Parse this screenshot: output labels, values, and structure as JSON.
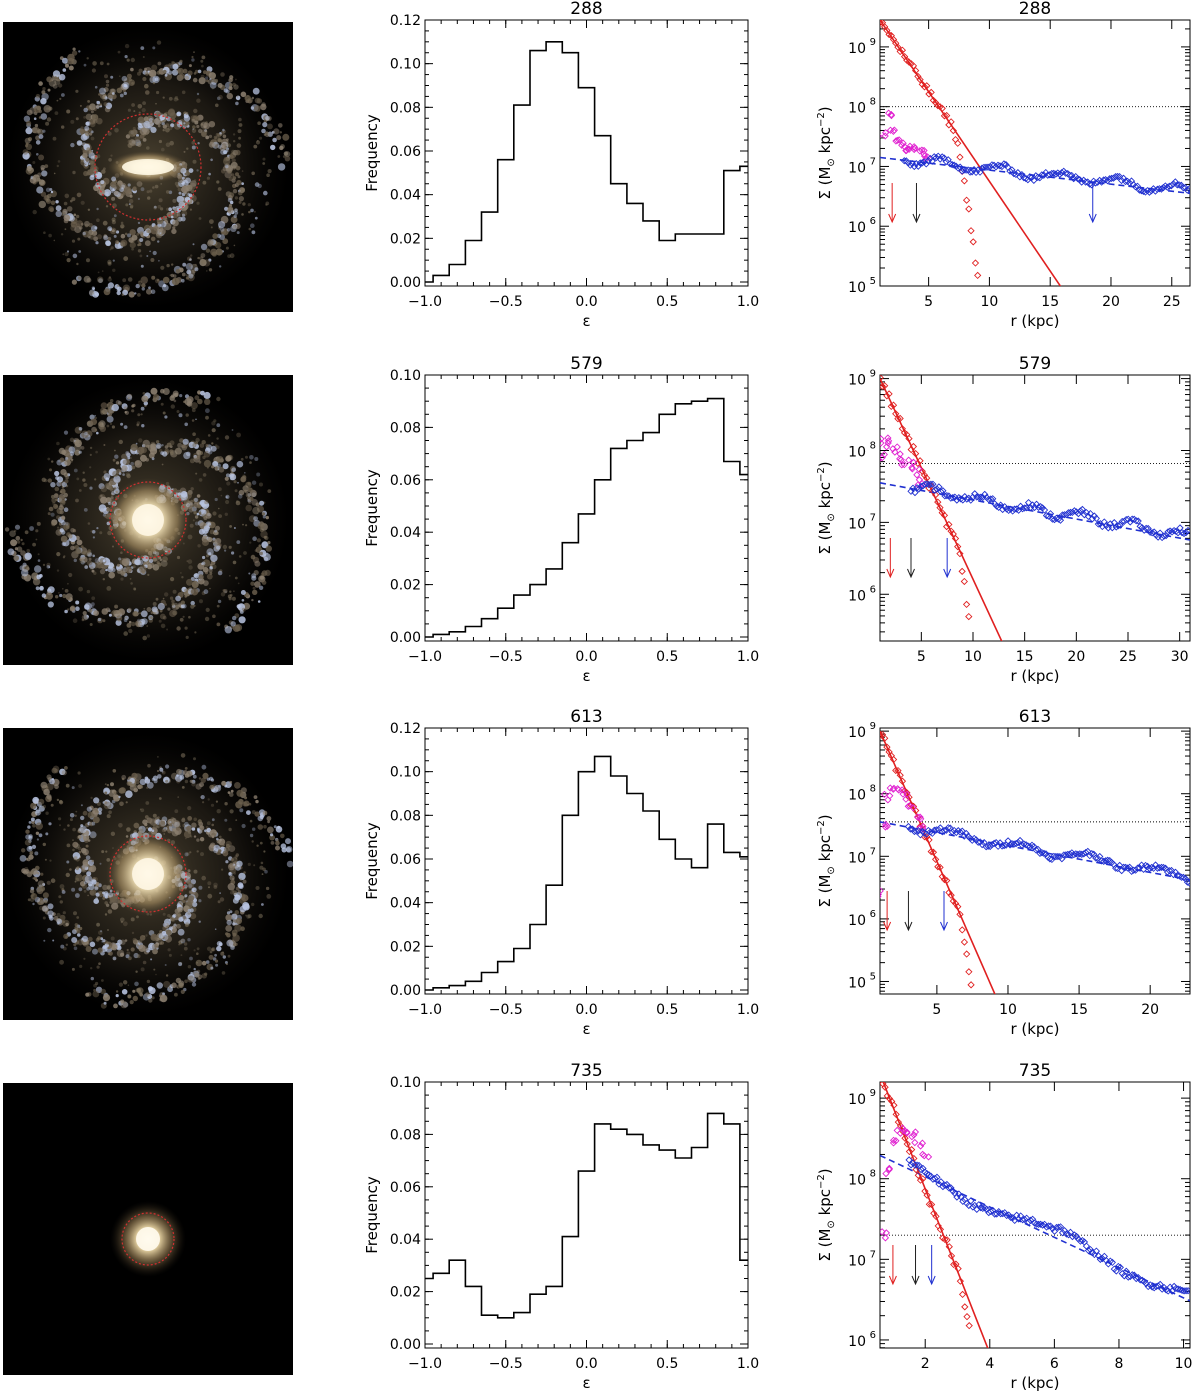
{
  "figure": {
    "panels": [
      {
        "id": "288",
        "galaxy_image": {
          "type": "barred-spiral",
          "bulge_circle_color": "#d03030",
          "spiral_arms": true
        },
        "hist": {
          "title": "288",
          "xlabel": "ε",
          "ylabel": "Frequency",
          "xlim": [
            -1.0,
            1.0
          ],
          "ylim": [
            0,
            0.12
          ],
          "yticks": [
            0.0,
            0.02,
            0.04,
            0.06,
            0.08,
            0.1,
            0.12
          ],
          "ytick_labels": [
            "0.00",
            "0.02",
            "0.04",
            "0.06",
            "0.08",
            "0.10",
            "0.12"
          ],
          "xticks": [
            -1.0,
            -0.5,
            0.0,
            0.5,
            1.0
          ],
          "xtick_labels": [
            "−1.0",
            "−0.5",
            "0.0",
            "0.5",
            "1.0"
          ],
          "bin_width": 0.1,
          "values": [
            0.0,
            0.003,
            0.008,
            0.019,
            0.032,
            0.056,
            0.081,
            0.106,
            0.11,
            0.105,
            0.089,
            0.067,
            0.045,
            0.036,
            0.028,
            0.019,
            0.022,
            0.022,
            0.022,
            0.051,
            0.053
          ]
        },
        "profile": {
          "title": "288",
          "xlabel": "r (kpc)",
          "ylabel": "Σ (M",
          "ylabel_sub": "⊙",
          "ylabel_rest": " kpc",
          "ylabel_sup": "−2",
          "ylabel_close": ")",
          "xlim": [
            1,
            26.5
          ],
          "ylog": [
            5,
            9.45
          ],
          "xticks": [
            5,
            10,
            15,
            20,
            25
          ],
          "xtick_labels": [
            "5",
            "10",
            "15",
            "20",
            "25"
          ],
          "yticks": [
            5,
            6,
            7,
            8,
            9
          ],
          "ytick_labels": [
            "10",
            "10",
            "10",
            "10",
            "10"
          ],
          "ytick_exps": [
            "5",
            "6",
            "7",
            "8",
            "9"
          ],
          "hline": 8.0,
          "bulge_fit": {
            "log_sigma0": 9.45,
            "r0": 1.0,
            "slope": -0.3
          },
          "disk_fit": {
            "log_sigma0": 7.15,
            "r0": 1.0,
            "slope": -0.0235
          },
          "arrows": [
            {
              "color": "#e02020",
              "x": 2.0
            },
            {
              "color": "#202020",
              "x": 4.0
            },
            {
              "color": "#2030d0",
              "x": 18.5
            }
          ],
          "bulge_points": {
            "r_max": 12.0,
            "cut_r": 7.0,
            "steep": 0.7
          },
          "magenta_points": [
            [
              1.2,
              7.55
            ],
            [
              1.6,
              7.85
            ],
            [
              2.0,
              7.6
            ],
            [
              2.4,
              7.45
            ],
            [
              2.8,
              7.35
            ],
            [
              3.2,
              7.3
            ],
            [
              3.6,
              7.28
            ],
            [
              4.0,
              7.3
            ],
            [
              4.4,
              7.25
            ],
            [
              4.8,
              7.15
            ]
          ],
          "disk_points": {
            "r_min": 3.0,
            "r_max": 26.5,
            "wiggle": 0.08
          }
        }
      },
      {
        "id": "579",
        "galaxy_image": {
          "type": "spiral",
          "bulge_circle_color": "#d03030",
          "spiral_arms": true
        },
        "hist": {
          "title": "579",
          "xlabel": "ε",
          "ylabel": "Frequency",
          "xlim": [
            -1.0,
            1.0
          ],
          "ylim": [
            0,
            0.1
          ],
          "yticks": [
            0.0,
            0.02,
            0.04,
            0.06,
            0.08,
            0.1
          ],
          "ytick_labels": [
            "0.00",
            "0.02",
            "0.04",
            "0.06",
            "0.08",
            "0.10"
          ],
          "xticks": [
            -1.0,
            -0.5,
            0.0,
            0.5,
            1.0
          ],
          "xtick_labels": [
            "−1.0",
            "−0.5",
            "0.0",
            "0.5",
            "1.0"
          ],
          "bin_width": 0.1,
          "values": [
            0.0,
            0.001,
            0.002,
            0.004,
            0.007,
            0.011,
            0.016,
            0.02,
            0.026,
            0.036,
            0.047,
            0.06,
            0.072,
            0.075,
            0.078,
            0.085,
            0.089,
            0.09,
            0.091,
            0.067,
            0.062
          ]
        },
        "profile": {
          "title": "579",
          "xlabel": "r (kpc)",
          "ylabel": "Σ (M",
          "ylabel_sub": "⊙",
          "ylabel_rest": " kpc",
          "ylabel_sup": "−2",
          "ylabel_close": ")",
          "xlim": [
            1,
            31
          ],
          "ylog": [
            5.35,
            9.05
          ],
          "xticks": [
            5,
            10,
            15,
            20,
            25,
            30
          ],
          "xtick_labels": [
            "5",
            "10",
            "15",
            "20",
            "25",
            "30"
          ],
          "yticks": [
            6,
            7,
            8,
            9
          ],
          "ytick_labels": [
            "10",
            "10",
            "10",
            "10"
          ],
          "ytick_exps": [
            "6",
            "7",
            "8",
            "9"
          ],
          "hline": 7.82,
          "bulge_fit": {
            "log_sigma0": 9.0,
            "r0": 1.0,
            "slope": -0.31
          },
          "disk_fit": {
            "log_sigma0": 7.55,
            "r0": 1.0,
            "slope": -0.0265
          },
          "arrows": [
            {
              "color": "#e02020",
              "x": 2.0
            },
            {
              "color": "#202020",
              "x": 4.0
            },
            {
              "color": "#2030d0",
              "x": 7.5
            }
          ],
          "bulge_points": {
            "r_max": 13.2,
            "cut_r": 8.5,
            "steep": 0.6
          },
          "magenta_points": [
            [
              1.0,
              7.9
            ],
            [
              1.5,
              8.15
            ],
            [
              2.0,
              8.1
            ],
            [
              2.5,
              8.0
            ],
            [
              3.0,
              7.92
            ],
            [
              3.5,
              7.85
            ],
            [
              4.0,
              7.8
            ],
            [
              4.5,
              7.7
            ],
            [
              5.0,
              7.55
            ]
          ],
          "disk_points": {
            "r_min": 4.0,
            "r_max": 31,
            "wiggle": 0.06
          }
        }
      },
      {
        "id": "613",
        "galaxy_image": {
          "type": "spiral",
          "bulge_circle_color": "#d03030",
          "spiral_arms": true
        },
        "hist": {
          "title": "613",
          "xlabel": "ε",
          "ylabel": "Frequency",
          "xlim": [
            -1.0,
            1.0
          ],
          "ylim": [
            0,
            0.12
          ],
          "yticks": [
            0.0,
            0.02,
            0.04,
            0.06,
            0.08,
            0.1,
            0.12
          ],
          "ytick_labels": [
            "0.00",
            "0.02",
            "0.04",
            "0.06",
            "0.08",
            "0.10",
            "0.12"
          ],
          "xticks": [
            -1.0,
            -0.5,
            0.0,
            0.5,
            1.0
          ],
          "xtick_labels": [
            "−1.0",
            "−0.5",
            "0.0",
            "0.5",
            "1.0"
          ],
          "bin_width": 0.1,
          "values": [
            0.0,
            0.001,
            0.002,
            0.004,
            0.008,
            0.013,
            0.019,
            0.03,
            0.048,
            0.08,
            0.1,
            0.107,
            0.098,
            0.09,
            0.082,
            0.069,
            0.06,
            0.056,
            0.076,
            0.063,
            0.061
          ]
        },
        "profile": {
          "title": "613",
          "xlabel": "r (kpc)",
          "ylabel": "Σ (M",
          "ylabel_sub": "⊙",
          "ylabel_rest": " kpc",
          "ylabel_sup": "−2",
          "ylabel_close": ")",
          "xlim": [
            1,
            22.8
          ],
          "ylog": [
            4.8,
            9.05
          ],
          "xticks": [
            5,
            10,
            15,
            20
          ],
          "xtick_labels": [
            "5",
            "10",
            "15",
            "20"
          ],
          "yticks": [
            5,
            6,
            7,
            8,
            9
          ],
          "ytick_labels": [
            "10",
            "10",
            "10",
            "10",
            "10"
          ],
          "ytick_exps": [
            "5",
            "6",
            "7",
            "8",
            "9"
          ],
          "hline": 7.55,
          "bulge_fit": {
            "log_sigma0": 9.0,
            "r0": 1.0,
            "slope": -0.52
          },
          "disk_fit": {
            "log_sigma0": 7.55,
            "r0": 1.0,
            "slope": -0.0425
          },
          "arrows": [
            {
              "color": "#e02020",
              "x": 1.5
            },
            {
              "color": "#202020",
              "x": 3.0
            },
            {
              "color": "#2030d0",
              "x": 5.5
            }
          ],
          "bulge_points": {
            "r_max": 10.0,
            "cut_r": 6.5,
            "steep": 0.9
          },
          "magenta_points": [
            [
              1.0,
              6.4
            ],
            [
              1.3,
              7.5
            ],
            [
              1.6,
              7.95
            ],
            [
              2.0,
              8.1
            ],
            [
              2.4,
              8.05
            ],
            [
              2.8,
              7.95
            ],
            [
              3.2,
              7.8
            ],
            [
              3.6,
              7.6
            ],
            [
              4.0,
              7.45
            ]
          ],
          "disk_points": {
            "r_min": 3.0,
            "r_max": 22.8,
            "wiggle": 0.07
          }
        }
      },
      {
        "id": "735",
        "galaxy_image": {
          "type": "compact",
          "bulge_circle_color": "#d03030",
          "spiral_arms": false
        },
        "hist": {
          "title": "735",
          "xlabel": "ε",
          "ylabel": "Frequency",
          "xlim": [
            -1.0,
            1.0
          ],
          "ylim": [
            0,
            0.1
          ],
          "yticks": [
            0.0,
            0.02,
            0.04,
            0.06,
            0.08,
            0.1
          ],
          "ytick_labels": [
            "0.00",
            "0.02",
            "0.04",
            "0.06",
            "0.08",
            "0.10"
          ],
          "xticks": [
            -1.0,
            -0.5,
            0.0,
            0.5,
            1.0
          ],
          "xtick_labels": [
            "−1.0",
            "−0.5",
            "0.0",
            "0.5",
            "1.0"
          ],
          "bin_width": 0.1,
          "values": [
            0.025,
            0.027,
            0.032,
            0.022,
            0.011,
            0.01,
            0.012,
            0.019,
            0.022,
            0.041,
            0.066,
            0.084,
            0.082,
            0.08,
            0.076,
            0.074,
            0.071,
            0.075,
            0.088,
            0.084,
            0.032
          ]
        },
        "profile": {
          "title": "735",
          "xlabel": "r (kpc)",
          "ylabel": "Σ (M",
          "ylabel_sub": "⊙",
          "ylabel_rest": " kpc",
          "ylabel_sup": "−2",
          "ylabel_close": ")",
          "xlim": [
            0.6,
            10.2
          ],
          "ylog": [
            5.9,
            9.2
          ],
          "xticks": [
            2,
            4,
            6,
            8,
            10
          ],
          "xtick_labels": [
            "2",
            "4",
            "6",
            "8",
            "10"
          ],
          "yticks": [
            6,
            7,
            8,
            9
          ],
          "ytick_labels": [
            "10",
            "10",
            "10",
            "10"
          ],
          "ytick_exps": [
            "6",
            "7",
            "8",
            "9"
          ],
          "hline": 7.3,
          "bulge_fit": {
            "log_sigma0": 9.2,
            "r0": 0.7,
            "slope": -1.02
          },
          "disk_fit": {
            "log_sigma0": 8.27,
            "r0": 0.7,
            "slope": -0.188
          },
          "arrows": [
            {
              "color": "#e02020",
              "x": 1.0
            },
            {
              "color": "#202020",
              "x": 1.7
            },
            {
              "color": "#2030d0",
              "x": 2.2
            }
          ],
          "bulge_points": {
            "r_max": 4.6,
            "cut_r": 3.0,
            "steep": 1.5
          },
          "magenta_points": [
            [
              0.7,
              7.3
            ],
            [
              0.85,
              8.1
            ],
            [
              1.0,
              8.45
            ],
            [
              1.2,
              8.6
            ],
            [
              1.4,
              8.6
            ],
            [
              1.6,
              8.55
            ],
            [
              1.8,
              8.4
            ],
            [
              2.0,
              8.3
            ]
          ],
          "disk_points": {
            "r_min": 1.5,
            "r_max": 10.2,
            "wiggle": 0.09
          }
        }
      }
    ]
  }
}
